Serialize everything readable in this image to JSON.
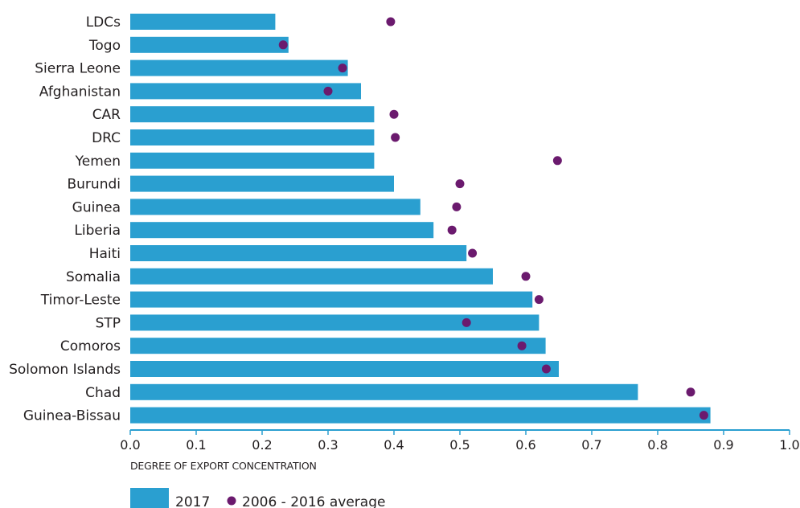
{
  "colors": {
    "bar": "#2a9fd0",
    "dot": "#6b1a6e",
    "axis": "#2a9fd0",
    "text": "#231f20"
  },
  "chart_data": {
    "type": "bar",
    "orientation": "horizontal",
    "title": "",
    "xlabel": "DEGREE OF EXPORT CONCENTRATION",
    "ylabel": "",
    "xlim": [
      0.0,
      1.0
    ],
    "x_ticks": [
      "0.0",
      "0.1",
      "0.2",
      "0.3",
      "0.4",
      "0.5",
      "0.6",
      "0.7",
      "0.8",
      "0.9",
      "1.0"
    ],
    "grid": false,
    "legend_position": "bottom-left",
    "categories": [
      "LDCs",
      "Togo",
      "Sierra Leone",
      "Afghanistan",
      "CAR",
      "DRC",
      "Yemen",
      "Burundi",
      "Guinea",
      "Liberia",
      "Haiti",
      "Somalia",
      "Timor-Leste",
      "STP",
      "Comoros",
      "Solomon Islands",
      "Chad",
      "Guinea-Bissau"
    ],
    "series": [
      {
        "name": "2017",
        "mark": "bar",
        "values": [
          0.22,
          0.24,
          0.33,
          0.35,
          0.37,
          0.37,
          0.37,
          0.4,
          0.44,
          0.46,
          0.51,
          0.55,
          0.61,
          0.62,
          0.63,
          0.65,
          0.77,
          0.88
        ]
      },
      {
        "name": "2006 - 2016 average",
        "mark": "dot",
        "values": [
          0.395,
          0.232,
          0.322,
          0.3,
          0.4,
          0.402,
          0.648,
          0.5,
          0.495,
          0.488,
          0.519,
          0.6,
          0.62,
          0.51,
          0.594,
          0.631,
          0.85,
          0.87
        ]
      }
    ]
  }
}
